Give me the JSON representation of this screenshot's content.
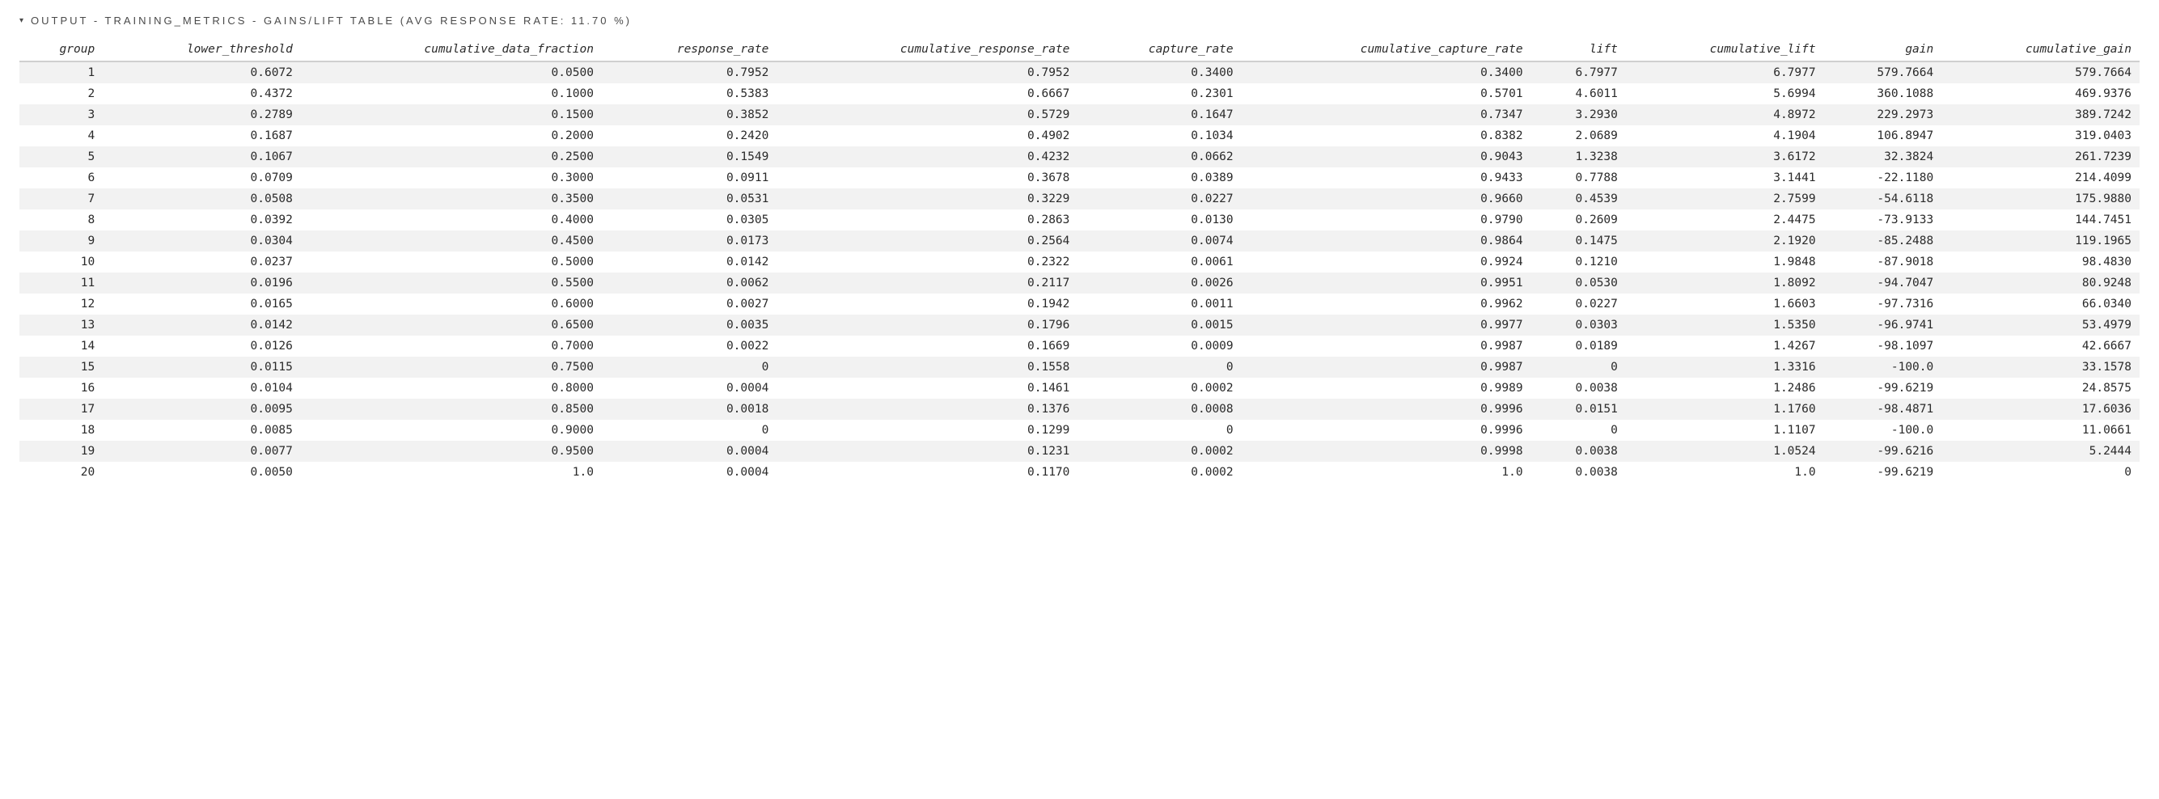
{
  "section": {
    "caret": "▾",
    "title": "OUTPUT - TRAINING_METRICS - GAINS/LIFT TABLE (AVG RESPONSE RATE: 11.70 %)"
  },
  "table": {
    "columns": [
      "group",
      "lower_threshold",
      "cumulative_data_fraction",
      "response_rate",
      "cumulative_response_rate",
      "capture_rate",
      "cumulative_capture_rate",
      "lift",
      "cumulative_lift",
      "gain",
      "cumulative_gain"
    ],
    "rows": [
      [
        "1",
        "0.6072",
        "0.0500",
        "0.7952",
        "0.7952",
        "0.3400",
        "0.3400",
        "6.7977",
        "6.7977",
        "579.7664",
        "579.7664"
      ],
      [
        "2",
        "0.4372",
        "0.1000",
        "0.5383",
        "0.6667",
        "0.2301",
        "0.5701",
        "4.6011",
        "5.6994",
        "360.1088",
        "469.9376"
      ],
      [
        "3",
        "0.2789",
        "0.1500",
        "0.3852",
        "0.5729",
        "0.1647",
        "0.7347",
        "3.2930",
        "4.8972",
        "229.2973",
        "389.7242"
      ],
      [
        "4",
        "0.1687",
        "0.2000",
        "0.2420",
        "0.4902",
        "0.1034",
        "0.8382",
        "2.0689",
        "4.1904",
        "106.8947",
        "319.0403"
      ],
      [
        "5",
        "0.1067",
        "0.2500",
        "0.1549",
        "0.4232",
        "0.0662",
        "0.9043",
        "1.3238",
        "3.6172",
        "32.3824",
        "261.7239"
      ],
      [
        "6",
        "0.0709",
        "0.3000",
        "0.0911",
        "0.3678",
        "0.0389",
        "0.9433",
        "0.7788",
        "3.1441",
        "-22.1180",
        "214.4099"
      ],
      [
        "7",
        "0.0508",
        "0.3500",
        "0.0531",
        "0.3229",
        "0.0227",
        "0.9660",
        "0.4539",
        "2.7599",
        "-54.6118",
        "175.9880"
      ],
      [
        "8",
        "0.0392",
        "0.4000",
        "0.0305",
        "0.2863",
        "0.0130",
        "0.9790",
        "0.2609",
        "2.4475",
        "-73.9133",
        "144.7451"
      ],
      [
        "9",
        "0.0304",
        "0.4500",
        "0.0173",
        "0.2564",
        "0.0074",
        "0.9864",
        "0.1475",
        "2.1920",
        "-85.2488",
        "119.1965"
      ],
      [
        "10",
        "0.0237",
        "0.5000",
        "0.0142",
        "0.2322",
        "0.0061",
        "0.9924",
        "0.1210",
        "1.9848",
        "-87.9018",
        "98.4830"
      ],
      [
        "11",
        "0.0196",
        "0.5500",
        "0.0062",
        "0.2117",
        "0.0026",
        "0.9951",
        "0.0530",
        "1.8092",
        "-94.7047",
        "80.9248"
      ],
      [
        "12",
        "0.0165",
        "0.6000",
        "0.0027",
        "0.1942",
        "0.0011",
        "0.9962",
        "0.0227",
        "1.6603",
        "-97.7316",
        "66.0340"
      ],
      [
        "13",
        "0.0142",
        "0.6500",
        "0.0035",
        "0.1796",
        "0.0015",
        "0.9977",
        "0.0303",
        "1.5350",
        "-96.9741",
        "53.4979"
      ],
      [
        "14",
        "0.0126",
        "0.7000",
        "0.0022",
        "0.1669",
        "0.0009",
        "0.9987",
        "0.0189",
        "1.4267",
        "-98.1097",
        "42.6667"
      ],
      [
        "15",
        "0.0115",
        "0.7500",
        "0",
        "0.1558",
        "0",
        "0.9987",
        "0",
        "1.3316",
        "-100.0",
        "33.1578"
      ],
      [
        "16",
        "0.0104",
        "0.8000",
        "0.0004",
        "0.1461",
        "0.0002",
        "0.9989",
        "0.0038",
        "1.2486",
        "-99.6219",
        "24.8575"
      ],
      [
        "17",
        "0.0095",
        "0.8500",
        "0.0018",
        "0.1376",
        "0.0008",
        "0.9996",
        "0.0151",
        "1.1760",
        "-98.4871",
        "17.6036"
      ],
      [
        "18",
        "0.0085",
        "0.9000",
        "0",
        "0.1299",
        "0",
        "0.9996",
        "0",
        "1.1107",
        "-100.0",
        "11.0661"
      ],
      [
        "19",
        "0.0077",
        "0.9500",
        "0.0004",
        "0.1231",
        "0.0002",
        "0.9998",
        "0.0038",
        "1.0524",
        "-99.6216",
        "5.2444"
      ],
      [
        "20",
        "0.0050",
        "1.0",
        "0.0004",
        "0.1170",
        "0.0002",
        "1.0",
        "0.0038",
        "1.0",
        "-99.6219",
        "0"
      ]
    ],
    "header_fontstyle": "italic",
    "header_border_color": "#cfcfcf",
    "row_stripe_color": "#f2f2f2",
    "row_bg_color": "#ffffff",
    "text_color": "#2a2a2a",
    "font_family": "monospace",
    "cell_align": "right",
    "font_size_pt": 14.5
  }
}
